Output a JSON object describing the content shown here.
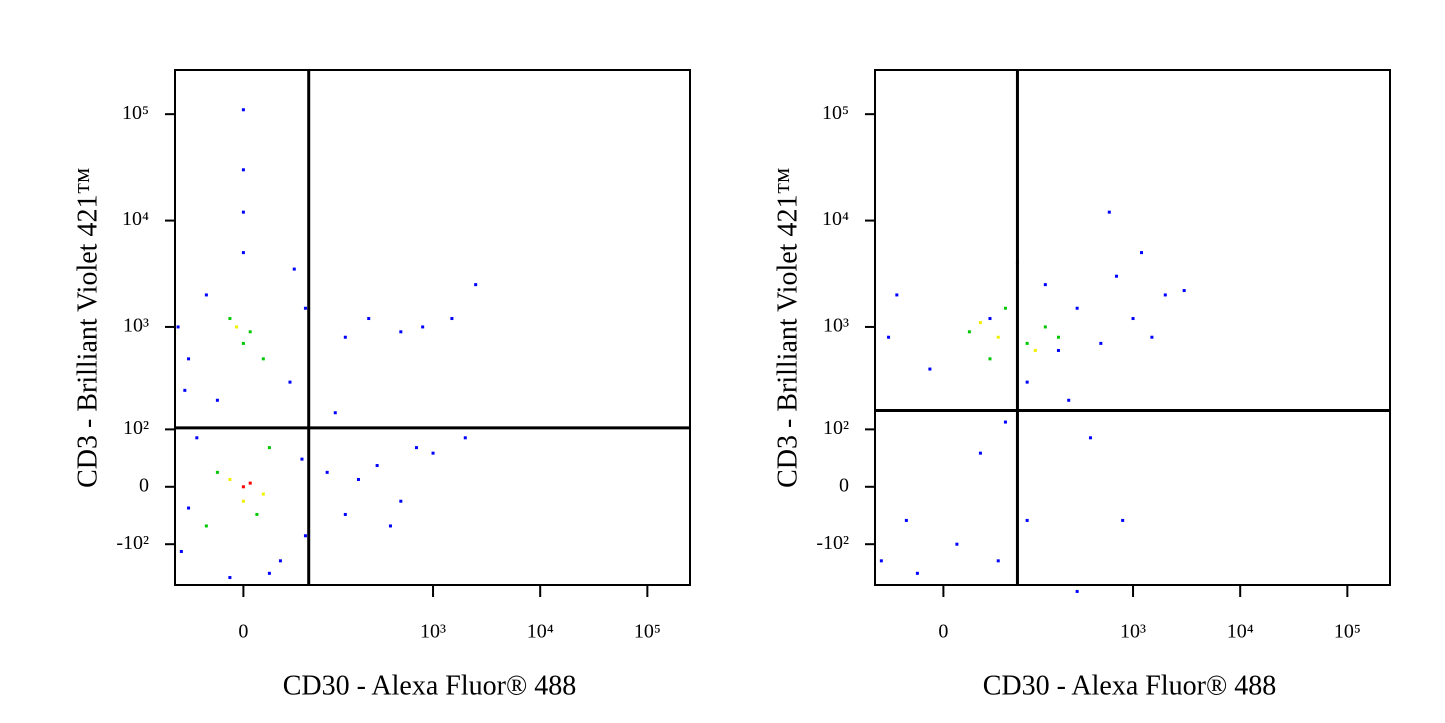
{
  "chart_data": [
    {
      "type": "scatter",
      "x_label": "CD30 - Alexa Fluor® 488",
      "y_label": "CD3 - Brilliant Violet 421™",
      "xlim": [
        -70,
        250000
      ],
      "ylim": [
        -260,
        260000
      ],
      "xticks": [
        0,
        {
          "value": 1000,
          "label": "10³"
        },
        {
          "value": 10000,
          "label": "10⁴"
        },
        {
          "value": 100000,
          "label": "10⁵"
        }
      ],
      "yticks": [
        {
          "value": -100,
          "label": "-10²"
        },
        0,
        {
          "value": 100,
          "label": "10²"
        },
        {
          "value": 1000,
          "label": "10³"
        },
        {
          "value": 10000,
          "label": "10⁴"
        },
        {
          "value": 100000,
          "label": "10⁵"
        }
      ],
      "gates": {
        "x": 65,
        "y": 104
      },
      "series": [
        {
          "color": "#0000ff",
          "x": [
            -50,
            -40,
            -60,
            30,
            55,
            60,
            100,
            150,
            200,
            300,
            500,
            700,
            -30,
            -50,
            40,
            60,
            150,
            250,
            500,
            800,
            1500,
            2500,
            0,
            0,
            0,
            0,
            -20,
            20,
            -55,
            45,
            120,
            400,
            2000,
            1000,
            -65,
            -10
          ],
          "y": [
            -30,
            80,
            -120,
            -150,
            40,
            -80,
            20,
            -40,
            10,
            30,
            -20,
            60,
            2000,
            500,
            300,
            1500,
            800,
            1200,
            900,
            1000,
            1200,
            2500,
            5000,
            30000,
            110000,
            12000,
            200,
            -200,
            250,
            3500,
            150,
            -60,
            80,
            50,
            1000,
            -220
          ]
        },
        {
          "color": "#00c800",
          "x": [
            -20,
            10,
            20,
            -30,
            0,
            -10,
            15,
            5
          ],
          "y": [
            20,
            -40,
            60,
            -60,
            700,
            1200,
            500,
            900
          ]
        },
        {
          "color": "#f0f000",
          "x": [
            -10,
            15,
            0,
            -5
          ],
          "y": [
            10,
            -10,
            -20,
            1000
          ]
        },
        {
          "color": "#ff0000",
          "x": [
            0,
            5
          ],
          "y": [
            0,
            5
          ]
        }
      ]
    },
    {
      "type": "scatter",
      "x_label": "CD30 - Alexa Fluor® 488",
      "y_label": "CD3 - Brilliant Violet 421™",
      "xlim": [
        -70,
        250000
      ],
      "ylim": [
        -260,
        260000
      ],
      "xticks": [
        0,
        {
          "value": 1000,
          "label": "10³"
        },
        {
          "value": 10000,
          "label": "10⁴"
        },
        {
          "value": 100000,
          "label": "10⁵"
        }
      ],
      "yticks": [
        {
          "value": -100,
          "label": "-10²"
        },
        0,
        {
          "value": 100,
          "label": "10²"
        },
        {
          "value": 1000,
          "label": "10³"
        },
        {
          "value": 10000,
          "label": "10⁴"
        },
        {
          "value": 100000,
          "label": "10⁵"
        }
      ],
      "gates": {
        "x": 80,
        "y": 158
      },
      "series": [
        {
          "color": "#0000ff",
          "x": [
            -50,
            -40,
            -30,
            -20,
            10,
            30,
            50,
            60,
            100,
            150,
            200,
            300,
            500,
            700,
            1000,
            1500,
            2000,
            3000,
            100,
            400,
            250,
            600,
            -10,
            -60,
            40,
            80,
            1200,
            300,
            800
          ],
          "y": [
            800,
            2000,
            -50,
            -200,
            -100,
            50,
            -150,
            120,
            300,
            2500,
            600,
            1500,
            700,
            3000,
            1200,
            800,
            2000,
            2200,
            -50,
            80,
            200,
            12000,
            400,
            -150,
            1200,
            4000,
            5000,
            -300,
            -50
          ]
        },
        {
          "color": "#00c800",
          "x": [
            20,
            40,
            100,
            150,
            60,
            200
          ],
          "y": [
            900,
            500,
            700,
            1000,
            1500,
            800
          ]
        },
        {
          "color": "#f0f000",
          "x": [
            50,
            120,
            30
          ],
          "y": [
            800,
            600,
            1100
          ]
        }
      ]
    }
  ]
}
